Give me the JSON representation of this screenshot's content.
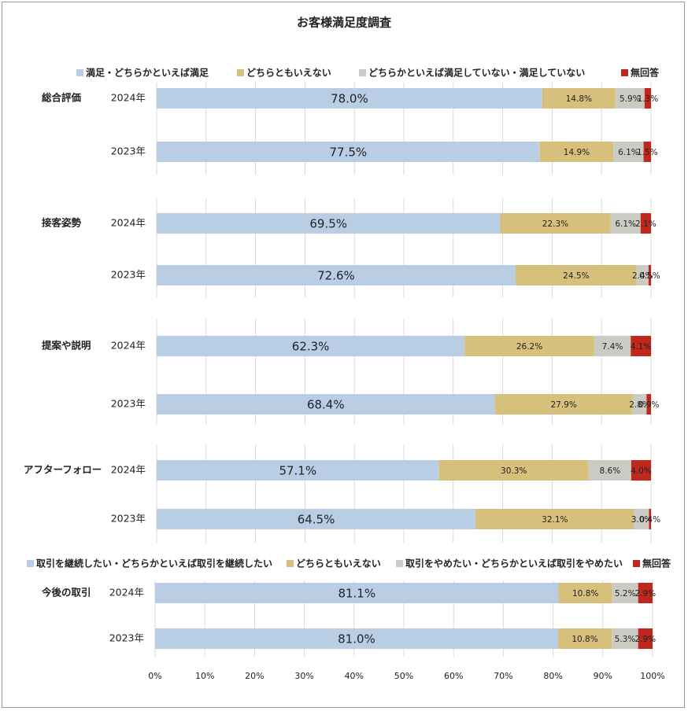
{
  "title": "お客様満足度調査",
  "chart_data": [
    {
      "type": "stacked_barh",
      "groups": [
        "総合評価",
        "接客姿勢",
        "提案や説明",
        "アフターフォロー"
      ],
      "categories": [
        "2024年",
        "2023年",
        "2024年",
        "2023年",
        "2024年",
        "2023年",
        "2024年",
        "2023年"
      ],
      "series": [
        {
          "name": "満足・どちらかといえば満足",
          "color": "#b9cde5",
          "values": [
            78.0,
            77.5,
            69.5,
            72.6,
            62.3,
            68.4,
            57.1,
            64.5
          ],
          "value_labels": [
            "78.0%",
            "77.5%",
            "69.5%",
            "72.6%",
            "62.3%",
            "68.4%",
            "57.1%",
            "64.5%"
          ]
        },
        {
          "name": "どちらともいえない",
          "color": "#d6c07c",
          "values": [
            14.8,
            14.9,
            22.3,
            24.5,
            26.2,
            27.9,
            30.3,
            32.1
          ],
          "value_labels": [
            "14.8%",
            "14.9%",
            "22.3%",
            "24.5%",
            "26.2%",
            "27.9%",
            "30.3%",
            "32.1%"
          ]
        },
        {
          "name": "どちらかといえば満足していない・満足していない",
          "color": "#cbcbc3",
          "values": [
            5.9,
            6.1,
            6.1,
            2.4,
            7.4,
            2.8,
            8.6,
            3.0
          ],
          "value_labels": [
            "5.9%",
            "6.1%",
            "6.1%",
            "2.4%",
            "7.4%",
            "2.8%",
            "8.6%",
            "3.0%"
          ]
        },
        {
          "name": "無回答",
          "color": "#c0281e",
          "values": [
            1.3,
            1.5,
            2.1,
            0.5,
            4.1,
            0.9,
            4.0,
            0.4
          ],
          "value_labels": [
            "1.3%",
            "1.5%",
            "2.1%",
            "0.5%",
            "4.1%",
            "0.9%",
            "4.0%",
            "0.4%"
          ]
        }
      ]
    },
    {
      "type": "stacked_barh",
      "groups": [
        "今後の取引"
      ],
      "categories": [
        "2024年",
        "2023年"
      ],
      "series": [
        {
          "name": "取引を継続したい・どちらかといえば取引を継続したい",
          "color": "#b9cde5",
          "values": [
            81.1,
            81.0
          ],
          "value_labels": [
            "81.1%",
            "81.0%"
          ]
        },
        {
          "name": "どちらともいえない",
          "color": "#d6c07c",
          "values": [
            10.8,
            10.8
          ],
          "value_labels": [
            "10.8%",
            "10.8%"
          ]
        },
        {
          "name": "取引をやめたい・どちらかといえば取引をやめたい",
          "color": "#cbcbc3",
          "values": [
            5.2,
            5.3
          ],
          "value_labels": [
            "5.2%",
            "5.3%"
          ]
        },
        {
          "name": "無回答",
          "color": "#c0281e",
          "values": [
            2.9,
            2.9
          ],
          "value_labels": [
            "2.9%",
            "2.9%"
          ]
        }
      ],
      "xlim": [
        0,
        100
      ],
      "xticks": [
        {
          "value": 0,
          "label": "0%"
        },
        {
          "value": 10,
          "label": "10%"
        },
        {
          "value": 20,
          "label": "20%"
        },
        {
          "value": 30,
          "label": "30%"
        },
        {
          "value": 40,
          "label": "40%"
        },
        {
          "value": 50,
          "label": "50%"
        },
        {
          "value": 60,
          "label": "60%"
        },
        {
          "value": 70,
          "label": "70%"
        },
        {
          "value": 80,
          "label": "80%"
        },
        {
          "value": 90,
          "label": "90%"
        },
        {
          "value": 100,
          "label": "100%"
        }
      ],
      "grid": true
    }
  ]
}
